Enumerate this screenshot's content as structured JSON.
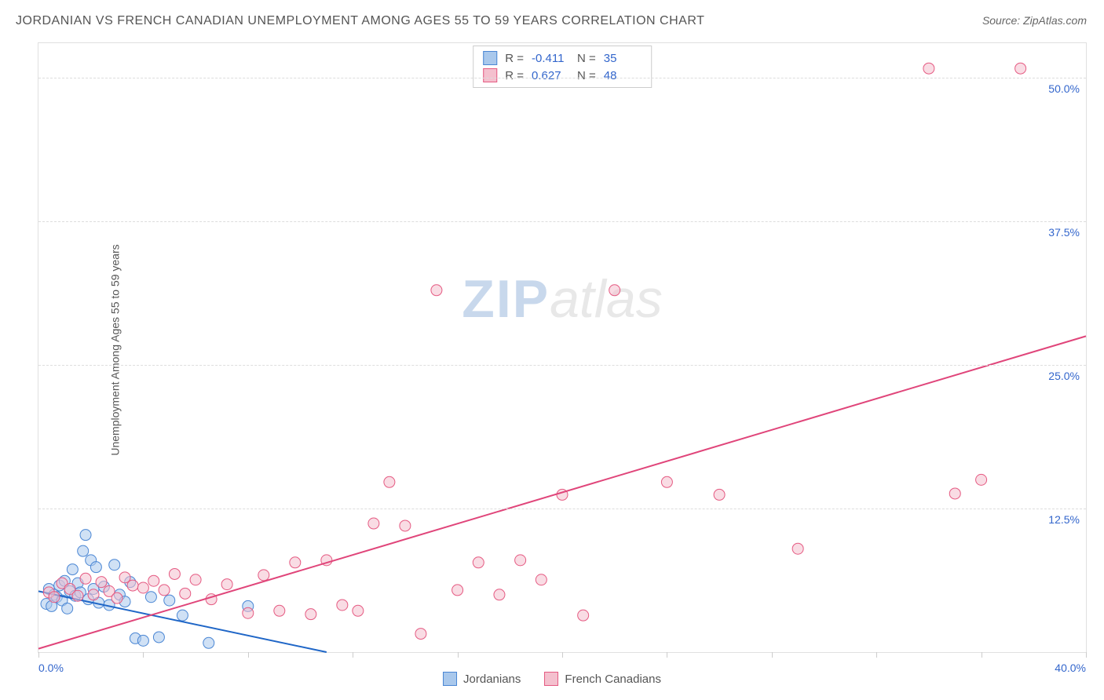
{
  "title": "JORDANIAN VS FRENCH CANADIAN UNEMPLOYMENT AMONG AGES 55 TO 59 YEARS CORRELATION CHART",
  "source": "Source: ZipAtlas.com",
  "y_axis_label": "Unemployment Among Ages 55 to 59 years",
  "watermark": {
    "part1": "ZIP",
    "part2": "atlas"
  },
  "chart": {
    "type": "scatter",
    "xlim": [
      0,
      40
    ],
    "ylim": [
      0,
      53
    ],
    "x_min_label": "0.0%",
    "x_max_label": "40.0%",
    "x_ticks_at": [
      0,
      4,
      8,
      12,
      16,
      20,
      24,
      28,
      32,
      36,
      40
    ],
    "y_ticks": [
      {
        "value": 12.5,
        "label": "12.5%"
      },
      {
        "value": 25.0,
        "label": "25.0%"
      },
      {
        "value": 37.5,
        "label": "37.5%"
      },
      {
        "value": 50.0,
        "label": "50.0%"
      }
    ],
    "background_color": "#ffffff",
    "grid_color": "#dddddd",
    "marker_radius": 7,
    "marker_opacity": 0.55,
    "line_width": 2,
    "series": [
      {
        "name": "Jordanians",
        "color_fill": "#a9c8ec",
        "color_stroke": "#4a86d4",
        "line_color": "#1f66c7",
        "R": "-0.411",
        "N": "35",
        "trend": {
          "x1": 0,
          "y1": 5.3,
          "x2": 11,
          "y2": 0
        },
        "points": [
          [
            0.3,
            4.2
          ],
          [
            0.4,
            5.5
          ],
          [
            0.5,
            4.0
          ],
          [
            0.6,
            5.0
          ],
          [
            0.7,
            4.8
          ],
          [
            0.8,
            5.8
          ],
          [
            0.9,
            4.5
          ],
          [
            1.0,
            6.2
          ],
          [
            1.1,
            3.8
          ],
          [
            1.2,
            5.3
          ],
          [
            1.3,
            7.2
          ],
          [
            1.4,
            4.9
          ],
          [
            1.5,
            6.0
          ],
          [
            1.6,
            5.2
          ],
          [
            1.7,
            8.8
          ],
          [
            1.8,
            10.2
          ],
          [
            1.9,
            4.6
          ],
          [
            2.0,
            8.0
          ],
          [
            2.1,
            5.5
          ],
          [
            2.2,
            7.4
          ],
          [
            2.3,
            4.3
          ],
          [
            2.5,
            5.7
          ],
          [
            2.7,
            4.1
          ],
          [
            2.9,
            7.6
          ],
          [
            3.1,
            5.0
          ],
          [
            3.3,
            4.4
          ],
          [
            3.5,
            6.1
          ],
          [
            3.7,
            1.2
          ],
          [
            4.0,
            1.0
          ],
          [
            4.3,
            4.8
          ],
          [
            4.6,
            1.3
          ],
          [
            5.0,
            4.5
          ],
          [
            5.5,
            3.2
          ],
          [
            6.5,
            0.8
          ],
          [
            8.0,
            4.0
          ]
        ]
      },
      {
        "name": "French Canadians",
        "color_fill": "#f4c0ce",
        "color_stroke": "#e55a82",
        "line_color": "#e0457a",
        "R": "0.627",
        "N": "48",
        "trend": {
          "x1": 0,
          "y1": 0.3,
          "x2": 40,
          "y2": 27.5
        },
        "points": [
          [
            0.4,
            5.2
          ],
          [
            0.6,
            4.8
          ],
          [
            0.9,
            6.0
          ],
          [
            1.2,
            5.5
          ],
          [
            1.5,
            4.9
          ],
          [
            1.8,
            6.4
          ],
          [
            2.1,
            5.0
          ],
          [
            2.4,
            6.1
          ],
          [
            2.7,
            5.3
          ],
          [
            3.0,
            4.7
          ],
          [
            3.3,
            6.5
          ],
          [
            3.6,
            5.8
          ],
          [
            4.0,
            5.6
          ],
          [
            4.4,
            6.2
          ],
          [
            4.8,
            5.4
          ],
          [
            5.2,
            6.8
          ],
          [
            5.6,
            5.1
          ],
          [
            6.0,
            6.3
          ],
          [
            6.6,
            4.6
          ],
          [
            7.2,
            5.9
          ],
          [
            8.0,
            3.4
          ],
          [
            8.6,
            6.7
          ],
          [
            9.2,
            3.6
          ],
          [
            9.8,
            7.8
          ],
          [
            10.4,
            3.3
          ],
          [
            11.0,
            8.0
          ],
          [
            11.6,
            4.1
          ],
          [
            12.2,
            3.6
          ],
          [
            12.8,
            11.2
          ],
          [
            13.4,
            14.8
          ],
          [
            14.0,
            11.0
          ],
          [
            14.6,
            1.6
          ],
          [
            15.2,
            31.5
          ],
          [
            16.0,
            5.4
          ],
          [
            16.8,
            7.8
          ],
          [
            17.6,
            5.0
          ],
          [
            18.4,
            8.0
          ],
          [
            19.2,
            6.3
          ],
          [
            20.0,
            13.7
          ],
          [
            20.8,
            3.2
          ],
          [
            22.0,
            31.5
          ],
          [
            24.0,
            14.8
          ],
          [
            26.0,
            13.7
          ],
          [
            29.0,
            9.0
          ],
          [
            34.0,
            50.8
          ],
          [
            35.0,
            13.8
          ],
          [
            36.0,
            15.0
          ],
          [
            37.5,
            50.8
          ]
        ]
      }
    ]
  },
  "stats_labels": {
    "R": "R =",
    "N": "N ="
  },
  "legend": {
    "series1": "Jordanians",
    "series2": "French Canadians"
  }
}
